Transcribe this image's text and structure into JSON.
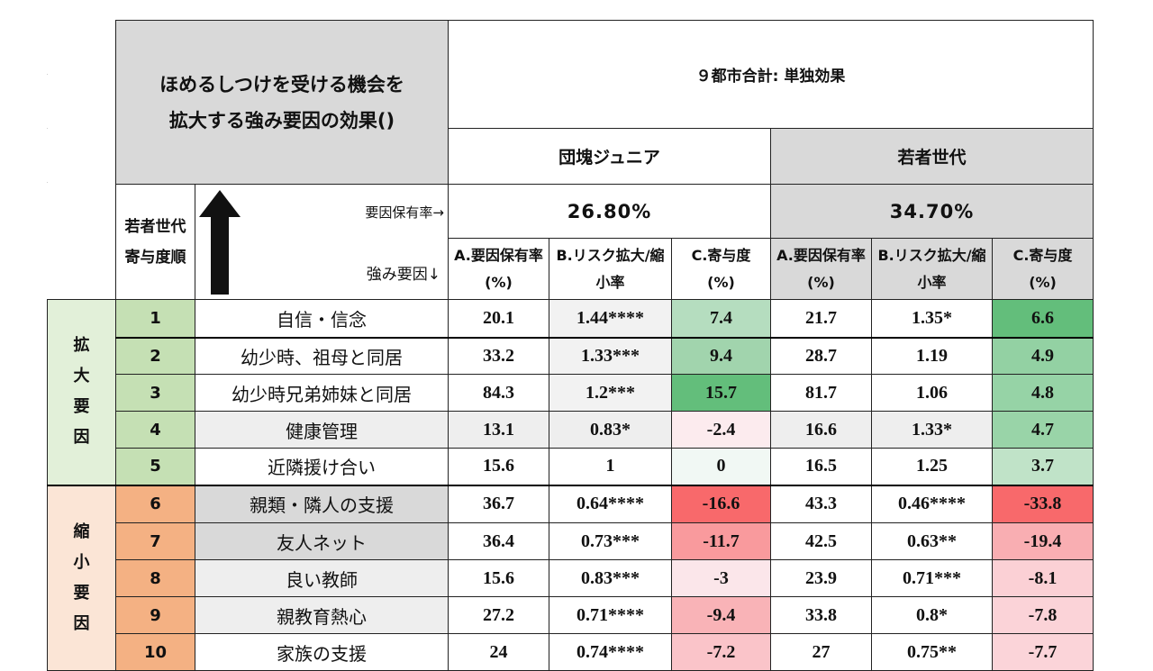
{
  "title": {
    "line1": "ほめるしつけを受ける機会を",
    "line2": "拡大する強み要因の効果()"
  },
  "header": {
    "overall": "９都市合計: 単独効果",
    "gen1": "団塊ジュニア",
    "gen2": "若者世代",
    "rank_label": "若者世代寄与度順",
    "holding_rate_label": "要因保有率→",
    "strength_label": "強み要因↓",
    "gen1_rate": "26.80%",
    "gen2_rate": "34.70%",
    "col_a": "A.要因保有率(%)",
    "col_b": "B.リスク拡大/縮小率",
    "col_c": "C.寄与度(%)"
  },
  "groups": {
    "expand": "拡大要因",
    "shrink": "縮小要因"
  },
  "colors": {
    "expand_group_bg": "#e2f0d9",
    "expand_rank_bg": "#c5e0b4",
    "shrink_group_bg": "#fbe5d6",
    "shrink_rank_bg": "#f4b183",
    "header_gray": "#d9d9d9"
  },
  "rows": [
    {
      "rank": "1",
      "factor": "自信・信念",
      "a1": "20.1",
      "b1": "1.44****",
      "c1": "7.4",
      "a2": "21.7",
      "b2": "1.35*",
      "c2": "6.6",
      "row_bg": "#ffffff",
      "b1_bg": "#f2f2f2",
      "c1_bg": "#b5ddbf",
      "c2_bg": "#63be7b"
    },
    {
      "rank": "2",
      "factor": "幼少時、祖母と同居",
      "a1": "33.2",
      "b1": "1.33***",
      "c1": "9.4",
      "a2": "28.7",
      "b2": "1.19",
      "c2": "4.9",
      "row_bg": "#ffffff",
      "b1_bg": "#f2f2f2",
      "c1_bg": "#a1d4ad",
      "c2_bg": "#93d1a3"
    },
    {
      "rank": "3",
      "factor": "幼少時兄弟姉妹と同居",
      "a1": "84.3",
      "b1": "1.2***",
      "c1": "15.7",
      "a2": "81.7",
      "b2": "1.06",
      "c2": "4.8",
      "row_bg": "#ffffff",
      "b1_bg": "#f2f2f2",
      "c1_bg": "#63be7b",
      "c2_bg": "#96d3a6"
    },
    {
      "rank": "4",
      "factor": "健康管理",
      "a1": "13.1",
      "b1": "0.83*",
      "c1": "-2.4",
      "a2": "16.6",
      "b2": "1.33*",
      "c2": "4.7",
      "row_bg": "#eeeeee",
      "b1_bg": "#eeeeee",
      "c1_bg": "#fcebee",
      "c2_bg": "#99d4a8"
    },
    {
      "rank": "5",
      "factor": "近隣援け合い",
      "a1": "15.6",
      "b1": "1",
      "c1": "0",
      "a2": "16.5",
      "b2": "1.25",
      "c2": "3.7",
      "row_bg": "#ffffff",
      "b1_bg": "#ffffff",
      "c1_bg": "#f1f8f4",
      "c2_bg": "#c0e3c8"
    },
    {
      "rank": "6",
      "factor": "親類・隣人の支援",
      "a1": "36.7",
      "b1": "0.64****",
      "c1": "-16.6",
      "a2": "43.3",
      "b2": "0.46****",
      "c2": "-33.8",
      "row_bg": "#ffffff",
      "b1_bg": "#ffffff",
      "c1_bg": "#f8696b",
      "c2_bg": "#f8696b",
      "factor_bg": "#d9d9d9"
    },
    {
      "rank": "7",
      "factor": "友人ネット",
      "a1": "36.4",
      "b1": "0.73***",
      "c1": "-11.7",
      "a2": "42.5",
      "b2": "0.63**",
      "c2": "-19.4",
      "row_bg": "#ffffff",
      "b1_bg": "#ffffff",
      "c1_bg": "#f99a9d",
      "c2_bg": "#f9aeb2",
      "factor_bg": "#d9d9d9"
    },
    {
      "rank": "8",
      "factor": "良い教師",
      "a1": "15.6",
      "b1": "0.83***",
      "c1": "-3",
      "a2": "23.9",
      "b2": "0.71***",
      "c2": "-8.1",
      "row_bg": "#ffffff",
      "b1_bg": "#ffffff",
      "c1_bg": "#fbe6ea",
      "c2_bg": "#fbd0d5",
      "factor_bg": "#eeeeee"
    },
    {
      "rank": "9",
      "factor": "親教育熱心",
      "a1": "27.2",
      "b1": "0.71****",
      "c1": "-9.4",
      "a2": "33.8",
      "b2": "0.8*",
      "c2": "-7.8",
      "row_bg": "#ffffff",
      "b1_bg": "#ffffff",
      "c1_bg": "#f9b3b7",
      "c2_bg": "#fbd3d8",
      "factor_bg": "#eeeeee"
    },
    {
      "rank": "10",
      "factor": "家族の支援",
      "a1": "24",
      "b1": "0.74****",
      "c1": "-7.2",
      "a2": "27",
      "b2": "0.75**",
      "c2": "-7.7",
      "row_bg": "#ffffff",
      "b1_bg": "#ffffff",
      "c1_bg": "#fac4c9",
      "c2_bg": "#fbd4d9",
      "factor_bg": "#ffffff"
    }
  ]
}
